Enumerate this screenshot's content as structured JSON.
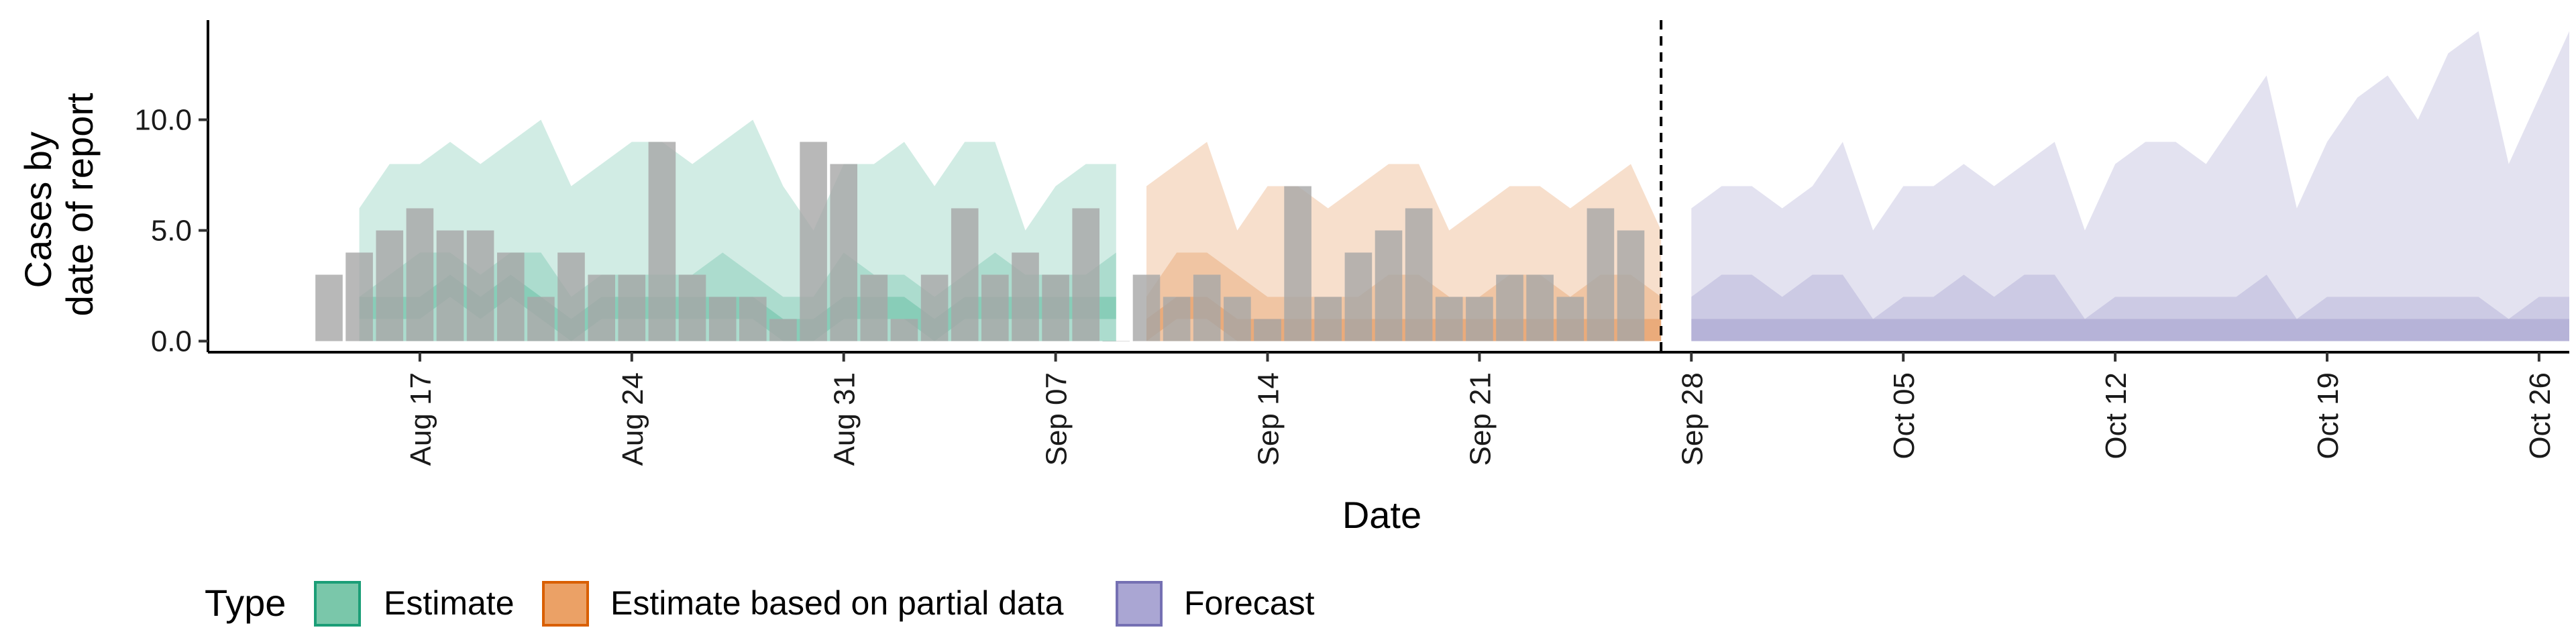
{
  "chart_data": {
    "type": "area",
    "xlabel": "Date",
    "ylabel_lines": [
      "Cases by",
      "date of report"
    ],
    "ylim": [
      -0.5,
      14.5
    ],
    "yticks": [
      0,
      5,
      10
    ],
    "ytick_labels": [
      "0.0",
      "5.0",
      "10.0"
    ],
    "x_range_day": [
      -3,
      75
    ],
    "xticks": [
      {
        "day": 4,
        "label": "Aug 17"
      },
      {
        "day": 11,
        "label": "Aug 24"
      },
      {
        "day": 18,
        "label": "Aug 31"
      },
      {
        "day": 25,
        "label": "Sep 07"
      },
      {
        "day": 32,
        "label": "Sep 14"
      },
      {
        "day": 39,
        "label": "Sep 21"
      },
      {
        "day": 46,
        "label": "Sep 28"
      },
      {
        "day": 53,
        "label": "Oct 05"
      },
      {
        "day": 60,
        "label": "Oct 12"
      },
      {
        "day": 67,
        "label": "Oct 19"
      },
      {
        "day": 74,
        "label": "Oct 26"
      }
    ],
    "vline_day": 45,
    "grid": false,
    "legend": {
      "title": "Type",
      "position": "bottom",
      "entries": [
        {
          "label": "Estimate",
          "fill": "#7ac7aa",
          "stroke": "#1b9e77"
        },
        {
          "label": "Estimate based on partial data",
          "fill": "#eba166",
          "stroke": "#d95f02"
        },
        {
          "label": "Forecast",
          "fill": "#aaa6d3",
          "stroke": "#7570b3"
        }
      ]
    },
    "series": [
      {
        "name": "Estimate",
        "color": "#1b9e77",
        "start_day": 2,
        "outer_upper": [
          6,
          8,
          8,
          9,
          8,
          9,
          10,
          7,
          8,
          9,
          9,
          8,
          9,
          10,
          7,
          5,
          8,
          8,
          9,
          7,
          9,
          9,
          5,
          7,
          8,
          8
        ],
        "outer_lower": [
          0,
          0,
          0,
          0,
          0,
          0,
          0,
          0,
          0,
          0,
          0,
          0,
          0,
          0,
          0,
          0,
          0,
          0,
          0,
          0,
          0,
          0,
          0,
          0,
          0,
          0
        ],
        "mid_upper": [
          2,
          3,
          4,
          4,
          3,
          4,
          4,
          2,
          3,
          3,
          3,
          3,
          4,
          3,
          2,
          2,
          4,
          3,
          3,
          2,
          3,
          4,
          3,
          3,
          3,
          4
        ],
        "mid_lower": [
          0,
          0,
          0,
          0,
          0,
          0,
          0,
          0,
          0,
          0,
          0,
          0,
          0,
          0,
          0,
          0,
          0,
          0,
          0,
          0,
          0,
          0,
          0,
          0,
          0,
          0
        ],
        "inner_upper": [
          2,
          2,
          2,
          3,
          2,
          3,
          2,
          1,
          2,
          2,
          2,
          2,
          2,
          2,
          1,
          1,
          2,
          2,
          2,
          1,
          2,
          2,
          2,
          2,
          2,
          2
        ],
        "inner_lower": [
          1,
          1,
          1,
          2,
          1,
          2,
          1,
          0,
          1,
          1,
          1,
          1,
          1,
          1,
          0,
          0,
          1,
          1,
          1,
          0,
          1,
          1,
          1,
          1,
          1,
          1
        ]
      },
      {
        "name": "Estimate based on partial data",
        "color": "#d95f02",
        "start_day": 28,
        "outer_upper": [
          7,
          8,
          9,
          5,
          7,
          7,
          6,
          7,
          8,
          8,
          5,
          6,
          7,
          7,
          6,
          7,
          8,
          5
        ],
        "outer_lower": [
          0,
          0,
          0,
          0,
          0,
          0,
          0,
          0,
          0,
          0,
          0,
          0,
          0,
          0,
          0,
          0,
          0,
          0
        ],
        "mid_upper": [
          2,
          4,
          4,
          3,
          2,
          2,
          2,
          2,
          3,
          3,
          2,
          2,
          3,
          3,
          2,
          3,
          3,
          2
        ],
        "mid_lower": [
          0,
          0,
          0,
          0,
          0,
          0,
          0,
          0,
          0,
          0,
          0,
          0,
          0,
          0,
          0,
          0,
          0,
          0
        ],
        "inner_upper": [
          1,
          2,
          2,
          1,
          1,
          1,
          1,
          1,
          1,
          1,
          1,
          1,
          1,
          1,
          1,
          1,
          1,
          1
        ],
        "inner_lower": [
          0,
          1,
          1,
          0,
          0,
          0,
          0,
          0,
          0,
          0,
          0,
          0,
          0,
          0,
          0,
          0,
          0,
          0
        ]
      },
      {
        "name": "Forecast",
        "color": "#7570b3",
        "start_day": 46,
        "outer_upper": [
          6,
          7,
          7,
          6,
          7,
          9,
          5,
          7,
          7,
          8,
          7,
          8,
          9,
          5,
          8,
          9,
          9,
          8,
          10,
          12,
          6,
          9,
          11,
          12,
          10,
          13,
          14,
          8,
          11,
          14
        ],
        "outer_lower": [
          0,
          0,
          0,
          0,
          0,
          0,
          0,
          0,
          0,
          0,
          0,
          0,
          0,
          0,
          0,
          0,
          0,
          0,
          0,
          0,
          0,
          0,
          0,
          0,
          0,
          0,
          0,
          0,
          0,
          0
        ],
        "mid_upper": [
          2,
          3,
          3,
          2,
          3,
          3,
          1,
          2,
          2,
          3,
          2,
          3,
          3,
          1,
          2,
          2,
          2,
          2,
          2,
          3,
          1,
          2,
          2,
          2,
          2,
          2,
          2,
          1,
          2,
          2
        ],
        "mid_lower": [
          0,
          0,
          0,
          0,
          0,
          0,
          0,
          0,
          0,
          0,
          0,
          0,
          0,
          0,
          0,
          0,
          0,
          0,
          0,
          0,
          0,
          0,
          0,
          0,
          0,
          0,
          0,
          0,
          0,
          0
        ],
        "inner_upper": [
          1,
          1,
          1,
          1,
          1,
          1,
          1,
          1,
          1,
          1,
          1,
          1,
          1,
          1,
          1,
          1,
          1,
          1,
          1,
          1,
          1,
          1,
          1,
          1,
          1,
          1,
          1,
          1,
          1,
          1
        ],
        "inner_lower": [
          0,
          0,
          0,
          0,
          0,
          0,
          0,
          0,
          0,
          0,
          0,
          0,
          0,
          0,
          0,
          0,
          0,
          0,
          0,
          0,
          0,
          0,
          0,
          0,
          0,
          0,
          0,
          0,
          0,
          0
        ]
      }
    ],
    "observed_cases": {
      "color": "#a6a6a6",
      "start_day": 1,
      "values": [
        3,
        4,
        5,
        6,
        5,
        5,
        4,
        2,
        4,
        3,
        3,
        9,
        3,
        2,
        2,
        1,
        9,
        8,
        3,
        1,
        3,
        6,
        3,
        4,
        3,
        6,
        0,
        3,
        2,
        3,
        2,
        1,
        7,
        2,
        4,
        5,
        6,
        2,
        2,
        3,
        3,
        2,
        6,
        5
      ]
    }
  }
}
